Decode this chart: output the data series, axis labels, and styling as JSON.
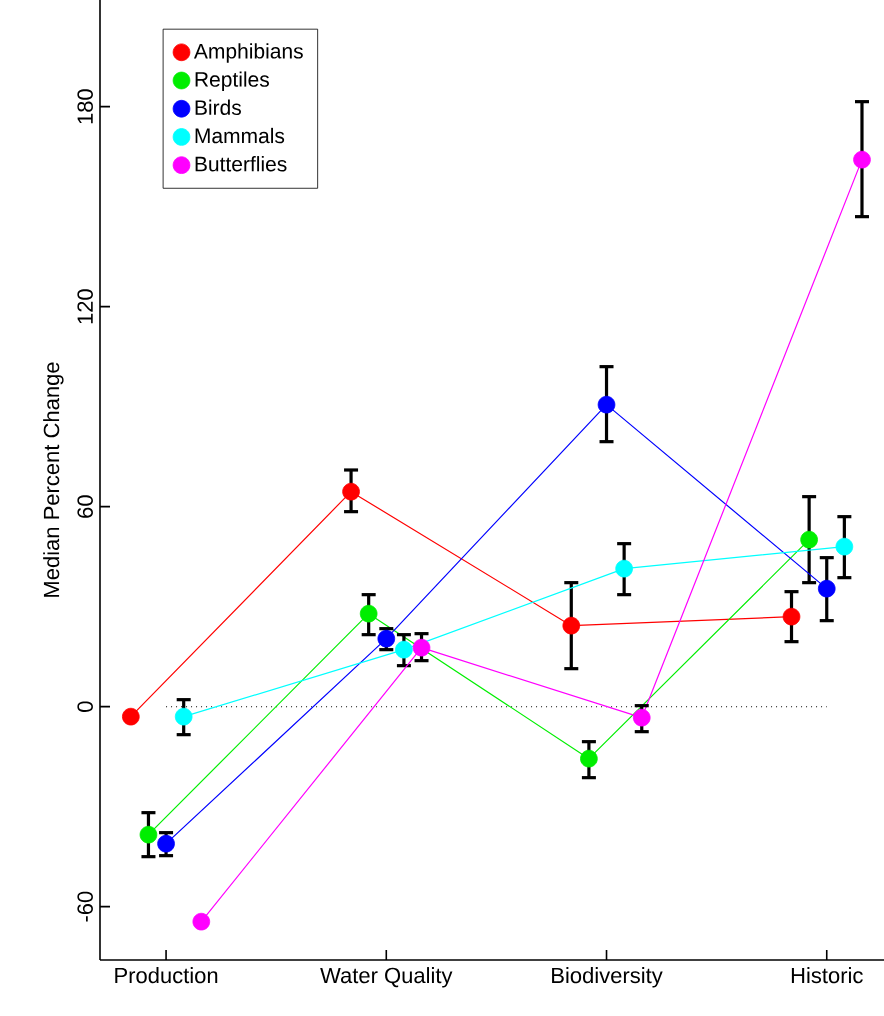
{
  "chart_data": {
    "type": "line",
    "ylabel": "Median Percent Change",
    "categories": [
      "Production",
      "Water Quality",
      "Biodiversity",
      "Historic"
    ],
    "series": [
      {
        "name": "Amphibians",
        "color": "#ff0000",
        "values": [
          -3,
          64.5,
          24.3,
          27
        ],
        "errors": [
          null,
          [
            58.5,
            71
          ],
          [
            11.4,
            37.2
          ],
          [
            19.5,
            34.5
          ]
        ]
      },
      {
        "name": "Reptiles",
        "color": "#00ee00",
        "values": [
          -38.4,
          27.9,
          -15.6,
          50.1
        ],
        "errors": [
          [
            -45,
            -31.8
          ],
          [
            21.6,
            33.6
          ],
          [
            -21.3,
            -10.5
          ],
          [
            37.2,
            63
          ]
        ]
      },
      {
        "name": "Birds",
        "color": "#0000ff",
        "values": [
          -41.1,
          20.4,
          90.6,
          35.4
        ],
        "errors": [
          [
            -44.7,
            -37.8
          ],
          [
            17.1,
            23.4
          ],
          [
            79.5,
            102
          ],
          [
            25.8,
            44.7
          ]
        ]
      },
      {
        "name": "Mammals",
        "color": "#00ffff",
        "values": [
          -3,
          17.1,
          41.4,
          48
        ],
        "errors": [
          [
            -8.4,
            2.1
          ],
          [
            12.3,
            21.6
          ],
          [
            33.6,
            48.9
          ],
          [
            38.7,
            57
          ]
        ]
      },
      {
        "name": "Butterflies",
        "color": "#ff00ff",
        "values": [
          -64.5,
          17.7,
          -3.3,
          164.1
        ],
        "errors": [
          null,
          [
            13.8,
            21.9
          ],
          [
            -7.5,
            0.3
          ],
          [
            147,
            181.5
          ]
        ]
      }
    ],
    "ylim": [
      -76,
      212
    ],
    "yticks": [
      -60,
      0,
      60,
      120,
      180
    ],
    "ref_lines": [
      {
        "axis": "y",
        "value": 0,
        "line_style": "dotted",
        "color": "#000000"
      }
    ],
    "legend": "top left",
    "marker": "circle",
    "line_style": "solid",
    "grid": false
  }
}
